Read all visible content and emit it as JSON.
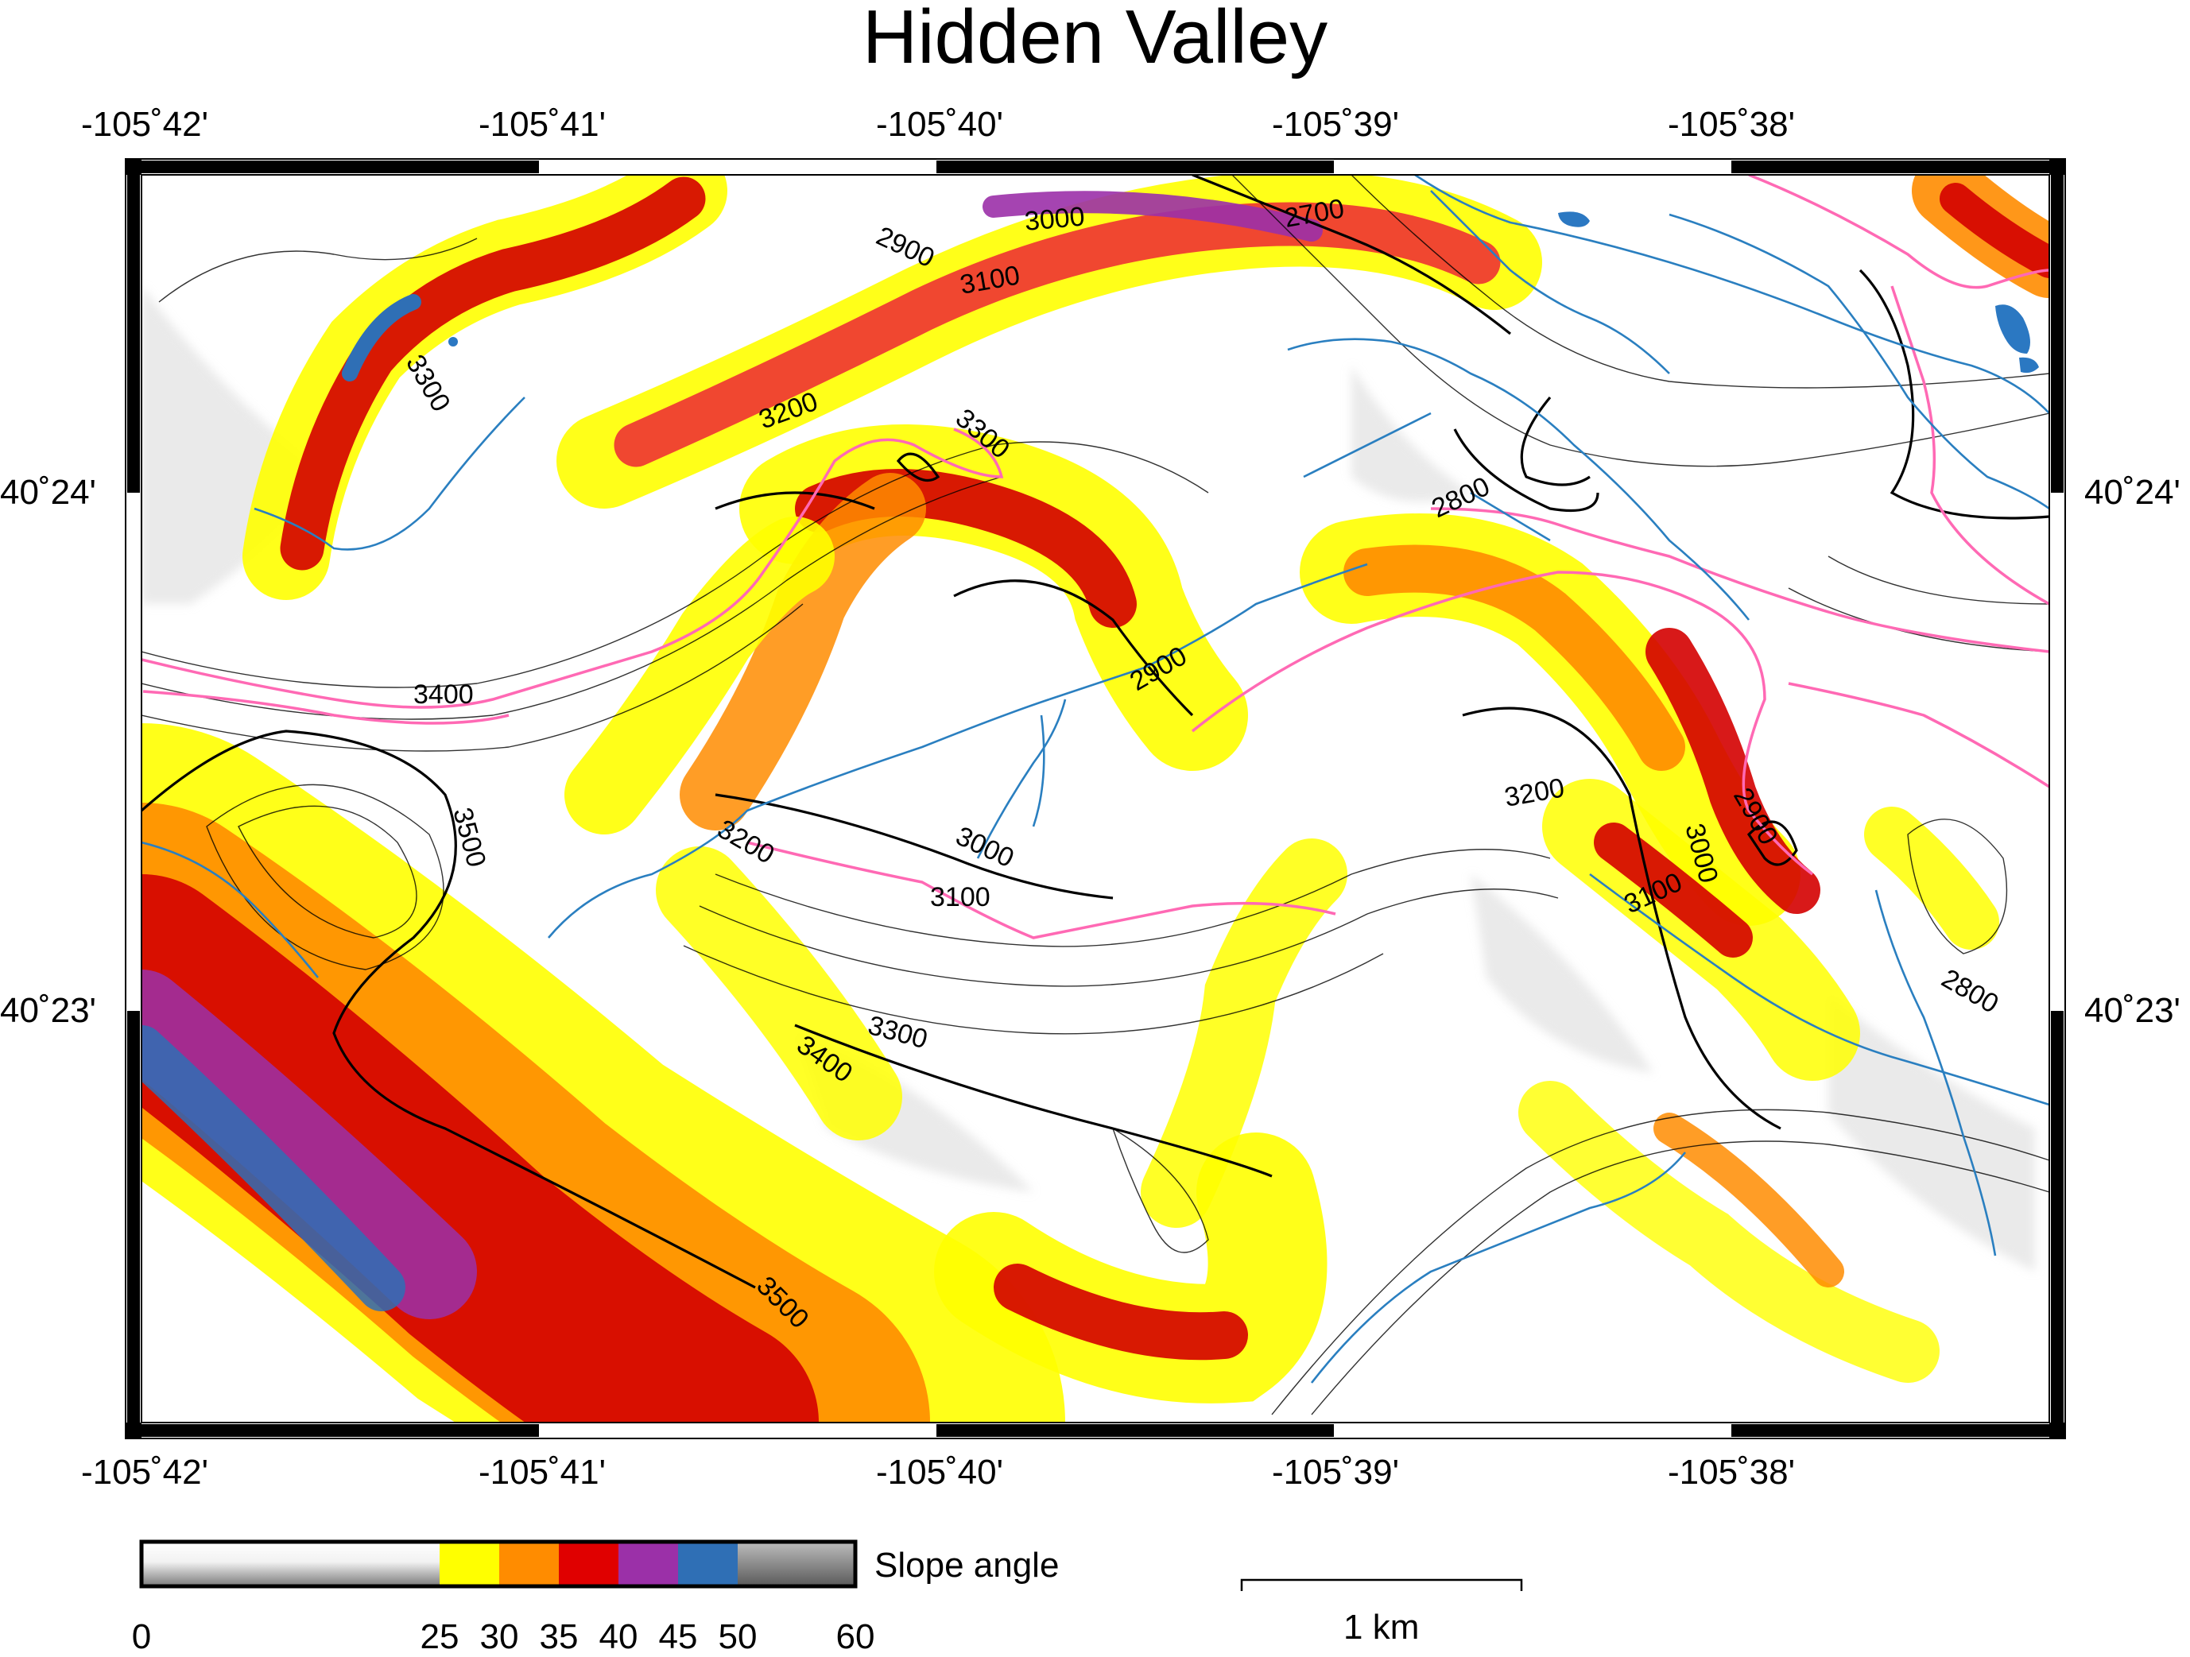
{
  "title": "Hidden Valley",
  "lon_ticks": [
    "-105˚42'",
    "-105˚41'",
    "-105˚40'",
    "-105˚39'",
    "-105˚38'"
  ],
  "lat_ticks": [
    "40˚24'",
    "40˚23'"
  ],
  "contour_labels": [
    "2700",
    "2800",
    "2900",
    "3000",
    "3100",
    "3200",
    "3300",
    "3400",
    "3500"
  ],
  "colorbar": {
    "label": "Slope angle",
    "ticks": [
      "0",
      "25",
      "30",
      "35",
      "40",
      "45",
      "50",
      "60"
    ],
    "colors": {
      "c25_30": "#ffff00",
      "c30_35": "#ff8c00",
      "c35_40": "#e00000",
      "c40_45": "#9b30a8",
      "c45_50": "#2f6fb5",
      "c50_60": "#8a8a8a"
    }
  },
  "scale_bar": {
    "label": "1 km"
  },
  "colors": {
    "stream": "#2a7fc0",
    "pink_line": "#ff69b4",
    "contour": "#000000",
    "lake": "#2b78c2"
  }
}
